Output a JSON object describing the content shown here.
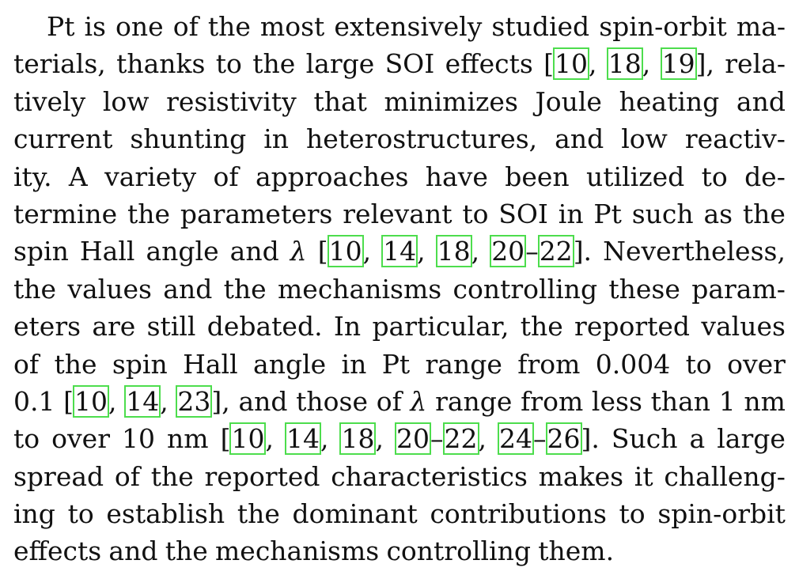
{
  "paragraph": {
    "lines": [
      "Pt is one of the most extensively studied spin-orbit ma-",
      "terials, thanks to the large SOI effects [10, 18, 19], rela-",
      "tively low resistivity that minimizes Joule heating and",
      "current shunting in heterostructures, and low reactiv-",
      "ity. A variety of approaches have been utilized to de-",
      "termine the parameters relevant to SOI in Pt such as the",
      "spin Hall angle and λ [10, 14, 18, 20–22]. Nevertheless,",
      "the values and the mechanisms controlling these param-",
      "eters are still debated. In particular, the reported values",
      "of the spin Hall angle in Pt range from 0.004 to over",
      "0.1 [10, 14, 23], and those of λ range from less than 1 nm",
      "to over 10 nm [10, 14, 18, 20–22, 24–26]. Such a large",
      "spread of the reported characteristics makes it challeng-",
      "ing to establish the dominant contributions to spin-orbit",
      "effects and the mechanisms controlling them."
    ]
  },
  "citation_style": {
    "link_box_color": "#4ddd4d"
  }
}
